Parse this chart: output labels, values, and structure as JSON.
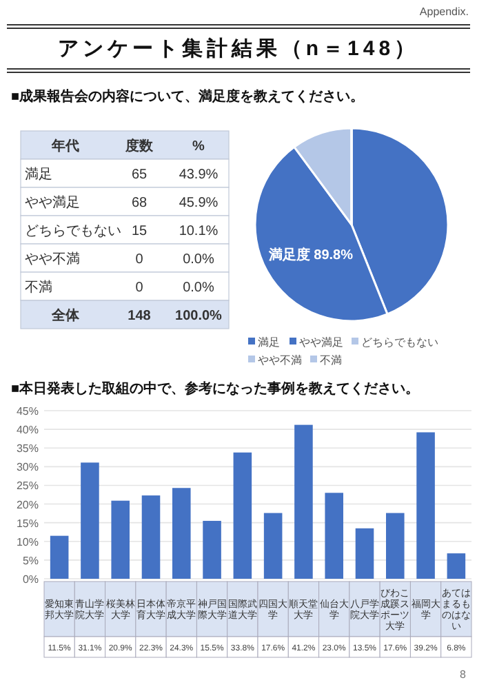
{
  "chart_data": [
    {
      "type": "other",
      "title": "アンケート集計結果（n＝148）",
      "subtitle": "■成果報告会の内容について、満足度を教えてください。",
      "annotations": [
        "年代",
        "度数",
        "%",
        "満足",
        "65",
        "43.9%",
        "やや満足",
        "68",
        "45.9%",
        "どちらでもない",
        "15",
        "10.1%",
        "やや不満",
        "0",
        "0.0%",
        "不満",
        "0",
        "0.0%",
        "全体",
        "148",
        "100.0%"
      ]
    },
    {
      "type": "pie",
      "categories": [
        "満足",
        "やや満足",
        "どちらでもない",
        "やや不満",
        "不満"
      ],
      "values": [
        43.9,
        45.9,
        10.1,
        0,
        0
      ],
      "colors": [
        "#4472c4",
        "#4472c4",
        "#b4c7e7",
        "#b4c7e7",
        "#b4c7e7"
      ],
      "legend": "bottom",
      "annotations": [
        "満足度 89.8%"
      ]
    },
    {
      "type": "bar",
      "title": "■本日発表した取組の中で、参考になった事例を教えてください。",
      "categories": [
        "愛知東邦大学",
        "青山学院大学",
        "桜美林大学",
        "日本体育大学",
        "帝京平成大学",
        "神戸国際大学",
        "国際武道大学",
        "四国大学",
        "順天堂大学",
        "仙台大学",
        "八戸学院大学",
        "びわこ成蹊スポーツ大学",
        "福岡大学",
        "あてはまるものはない"
      ],
      "values": [
        11.5,
        31.1,
        20.9,
        22.3,
        24.3,
        15.5,
        33.8,
        17.6,
        41.2,
        23.0,
        13.5,
        17.6,
        39.2,
        6.8
      ],
      "value_labels": [
        "11.5%",
        "31.1%",
        "20.9%",
        "22.3%",
        "24.3%",
        "15.5%",
        "33.8%",
        "17.6%",
        "41.2%",
        "23.0%",
        "13.5%",
        "17.6%",
        "39.2%",
        "6.8%"
      ],
      "color": "#4472c4",
      "ylim": [
        0,
        45
      ],
      "yticks": [
        {
          "value": 0,
          "label": "0%"
        },
        {
          "value": 5,
          "label": "5%"
        },
        {
          "value": 10,
          "label": "10%"
        },
        {
          "value": 15,
          "label": "15%"
        },
        {
          "value": 20,
          "label": "20%"
        },
        {
          "value": 25,
          "label": "25%"
        },
        {
          "value": 30,
          "label": "30%"
        },
        {
          "value": 35,
          "label": "35%"
        },
        {
          "value": 40,
          "label": "40%"
        },
        {
          "value": 45,
          "label": "45%"
        }
      ],
      "grid": "y",
      "annotations": [
        "Appendix.",
        "8"
      ]
    }
  ]
}
